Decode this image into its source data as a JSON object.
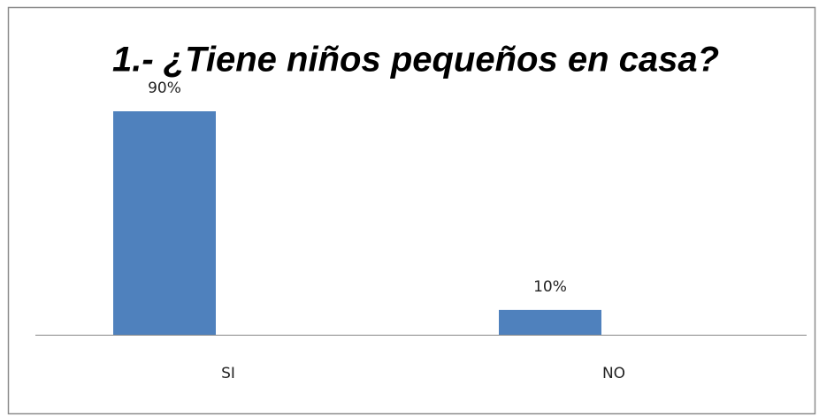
{
  "chart_data": {
    "type": "bar",
    "title": "1.- ¿Tiene niños pequeños en casa?",
    "categories": [
      "SI",
      "NO"
    ],
    "values": [
      90,
      10
    ],
    "value_labels": [
      "90%",
      "10%"
    ],
    "color": "#4f81bd"
  }
}
